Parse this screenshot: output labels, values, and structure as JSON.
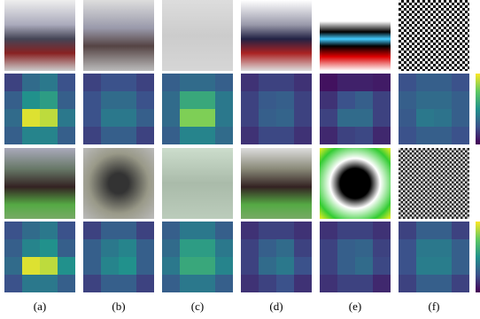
{
  "panel_labels": [
    "(a)",
    "(b)",
    "(c)",
    "(d)",
    "(e)",
    "(f)"
  ]
}
